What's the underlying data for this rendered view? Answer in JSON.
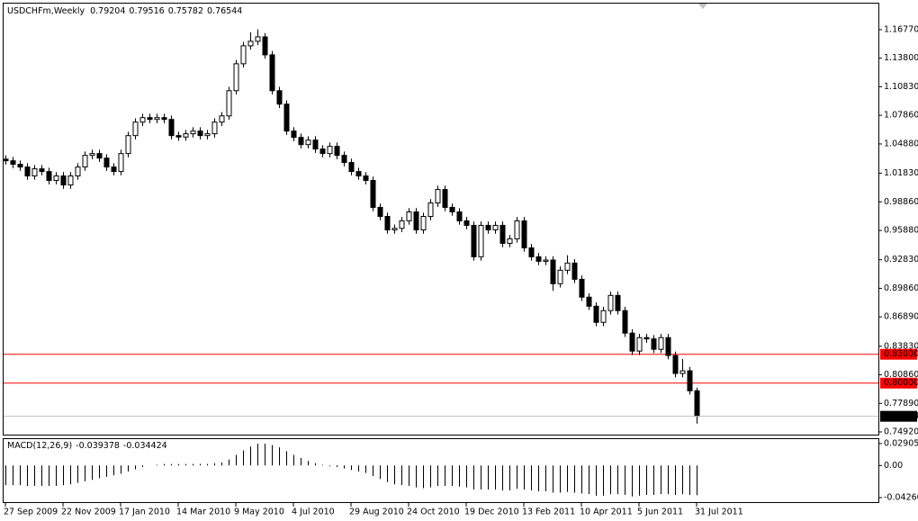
{
  "chart_data": [
    {
      "type": "candlestick",
      "title": "USDCHFm,Weekly",
      "categories": [
        "27 Sep 2009",
        null,
        null,
        null,
        null,
        null,
        null,
        null,
        "22 Nov 2009",
        null,
        null,
        null,
        null,
        null,
        null,
        null,
        "17 Jan 2010",
        null,
        null,
        null,
        null,
        null,
        null,
        null,
        "14 Mar 2010",
        null,
        null,
        null,
        null,
        null,
        null,
        null,
        "9 May 2010",
        null,
        null,
        null,
        null,
        null,
        null,
        null,
        "4 Jul 2010",
        null,
        null,
        null,
        null,
        null,
        null,
        null,
        "29 Aug 2010",
        null,
        null,
        null,
        null,
        null,
        null,
        null,
        "24 Oct 2010",
        null,
        null,
        null,
        null,
        null,
        null,
        null,
        "19 Dec 2010",
        null,
        null,
        null,
        null,
        null,
        null,
        null,
        "13 Feb 2011",
        null,
        null,
        null,
        null,
        null,
        null,
        null,
        "10 Apr 2011",
        null,
        null,
        null,
        null,
        null,
        null,
        null,
        "5 Jun 2011",
        null,
        null,
        null,
        null,
        null,
        null,
        null,
        "31 Jul 2011"
      ],
      "ohlc": [
        [
          1.033,
          1.037,
          1.0273,
          1.0313
        ],
        [
          1.0313,
          1.0353,
          1.0236,
          1.0276
        ],
        [
          1.0276,
          1.0316,
          1.0208,
          1.0248
        ],
        [
          1.0248,
          1.0288,
          1.0115,
          1.0155
        ],
        [
          1.0155,
          1.0269,
          1.0115,
          1.0229
        ],
        [
          1.0229,
          1.0269,
          1.0161,
          1.0201
        ],
        [
          1.0201,
          1.0241,
          1.0068,
          1.0108
        ],
        [
          1.0108,
          1.0195,
          1.0068,
          1.0155
        ],
        [
          1.0155,
          1.0195,
          1.0021,
          1.0061
        ],
        [
          1.0061,
          1.0195,
          1.0021,
          1.0155
        ],
        [
          1.0155,
          1.0288,
          1.0115,
          1.0248
        ],
        [
          1.0248,
          1.0409,
          1.0208,
          1.0369
        ],
        [
          1.0369,
          1.0428,
          1.0329,
          1.0388
        ],
        [
          1.0388,
          1.0428,
          1.0301,
          1.0341
        ],
        [
          1.0341,
          1.0381,
          1.0208,
          1.0248
        ],
        [
          1.0248,
          1.0288,
          1.0161,
          1.0201
        ],
        [
          1.0201,
          1.0428,
          1.0161,
          1.0388
        ],
        [
          1.0388,
          1.0615,
          1.0348,
          1.0575
        ],
        [
          1.0575,
          1.0755,
          1.0535,
          1.0715
        ],
        [
          1.0715,
          1.0802,
          1.0675,
          1.0762
        ],
        [
          1.0762,
          1.0802,
          1.0703,
          1.0743
        ],
        [
          1.0743,
          1.0802,
          1.0703,
          1.0762
        ],
        [
          1.0762,
          1.0802,
          1.0703,
          1.0743
        ],
        [
          1.0743,
          1.0783,
          1.0535,
          1.0575
        ],
        [
          1.0575,
          1.0615,
          1.052,
          1.056
        ],
        [
          1.056,
          1.0634,
          1.052,
          1.0594
        ],
        [
          1.0594,
          1.0662,
          1.0554,
          1.0622
        ],
        [
          1.0622,
          1.0662,
          1.0535,
          1.0575
        ],
        [
          1.0575,
          1.0634,
          1.0535,
          1.0594
        ],
        [
          1.0594,
          1.0755,
          1.0554,
          1.0715
        ],
        [
          1.0715,
          1.082,
          1.0675,
          1.078
        ],
        [
          1.078,
          1.1082,
          1.074,
          1.1042
        ],
        [
          1.1042,
          1.1362,
          1.1002,
          1.1322
        ],
        [
          1.1322,
          1.1549,
          1.1282,
          1.1509
        ],
        [
          1.1509,
          1.165,
          1.1469,
          1.1556
        ],
        [
          1.1556,
          1.168,
          1.1516,
          1.1602
        ],
        [
          1.1602,
          1.1642,
          1.1375,
          1.1415
        ],
        [
          1.1415,
          1.1455,
          1.1002,
          1.1042
        ],
        [
          1.1042,
          1.1082,
          1.0862,
          1.0902
        ],
        [
          1.0902,
          1.0942,
          1.0582,
          1.0622
        ],
        [
          1.0622,
          1.0662,
          1.0516,
          1.0556
        ],
        [
          1.0556,
          1.0596,
          1.0441,
          1.0481
        ],
        [
          1.0481,
          1.0568,
          1.0441,
          1.0528
        ],
        [
          1.0528,
          1.0568,
          1.0395,
          1.0435
        ],
        [
          1.0435,
          1.0475,
          1.0348,
          1.0388
        ],
        [
          1.0388,
          1.0503,
          1.0348,
          1.0463
        ],
        [
          1.0463,
          1.0503,
          1.0329,
          1.0369
        ],
        [
          1.0369,
          1.0409,
          1.0255,
          1.0295
        ],
        [
          1.0295,
          1.0335,
          1.0161,
          1.0201
        ],
        [
          1.0201,
          1.0241,
          1.0115,
          1.0155
        ],
        [
          1.0155,
          1.0195,
          1.0068,
          1.0108
        ],
        [
          1.0108,
          1.0148,
          0.9788,
          0.9828
        ],
        [
          0.9828,
          0.9868,
          0.9694,
          0.9734
        ],
        [
          0.9734,
          0.9774,
          0.9554,
          0.9594
        ],
        [
          0.9594,
          0.965,
          0.9554,
          0.961
        ],
        [
          0.961,
          0.9728,
          0.957,
          0.9688
        ],
        [
          0.9688,
          0.9821,
          0.9648,
          0.9781
        ],
        [
          0.9781,
          0.9821,
          0.9554,
          0.9594
        ],
        [
          0.9594,
          0.9774,
          0.9554,
          0.9734
        ],
        [
          0.9734,
          0.9914,
          0.9694,
          0.9874
        ],
        [
          0.9874,
          1.0054,
          0.9834,
          1.0014
        ],
        [
          1.0014,
          1.0054,
          0.9788,
          0.9828
        ],
        [
          0.9828,
          0.9868,
          0.9741,
          0.9781
        ],
        [
          0.9781,
          0.9821,
          0.9648,
          0.9688
        ],
        [
          0.9688,
          0.9728,
          0.9601,
          0.9641
        ],
        [
          0.9641,
          0.9681,
          0.9274,
          0.9314
        ],
        [
          0.9314,
          0.9681,
          0.9274,
          0.9641
        ],
        [
          0.9641,
          0.9681,
          0.9554,
          0.9594
        ],
        [
          0.9594,
          0.9681,
          0.9554,
          0.9641
        ],
        [
          0.9641,
          0.9681,
          0.9414,
          0.9454
        ],
        [
          0.9454,
          0.9541,
          0.9414,
          0.9501
        ],
        [
          0.9501,
          0.9728,
          0.9461,
          0.9688
        ],
        [
          0.9688,
          0.9728,
          0.9367,
          0.9407
        ],
        [
          0.9407,
          0.9447,
          0.9274,
          0.9314
        ],
        [
          0.9314,
          0.9354,
          0.9227,
          0.9267
        ],
        [
          0.9267,
          0.932,
          0.9227,
          0.928
        ],
        [
          0.928,
          0.932,
          0.896,
          0.9034
        ],
        [
          0.9034,
          0.9214,
          0.8994,
          0.9174
        ],
        [
          0.9174,
          0.933,
          0.9134,
          0.9249
        ],
        [
          0.9249,
          0.9289,
          0.904,
          0.908
        ],
        [
          0.908,
          0.912,
          0.8854,
          0.8894
        ],
        [
          0.8894,
          0.8934,
          0.876,
          0.88
        ],
        [
          0.88,
          0.884,
          0.8592,
          0.8632
        ],
        [
          0.8632,
          0.8794,
          0.8592,
          0.8754
        ],
        [
          0.8754,
          0.8952,
          0.8714,
          0.8912
        ],
        [
          0.8912,
          0.8952,
          0.8714,
          0.8754
        ],
        [
          0.8754,
          0.8794,
          0.848,
          0.852
        ],
        [
          0.852,
          0.856,
          0.8293,
          0.8333
        ],
        [
          0.8333,
          0.8513,
          0.8293,
          0.8473
        ],
        [
          0.8473,
          0.8513,
          0.842,
          0.846
        ],
        [
          0.846,
          0.85,
          0.8312,
          0.8352
        ],
        [
          0.8352,
          0.8513,
          0.8312,
          0.8473
        ],
        [
          0.8473,
          0.8513,
          0.8247,
          0.8287
        ],
        [
          0.8287,
          0.8327,
          0.806,
          0.81
        ],
        [
          0.81,
          0.825,
          0.806,
          0.8128
        ],
        [
          0.8128,
          0.8168,
          0.788,
          0.792
        ],
        [
          0.79204,
          0.79516,
          0.75782,
          0.76544
        ]
      ],
      "ylim": [
        0.7464,
        1.1948
      ],
      "yticks": [
        {
          "value": 1.1677,
          "label": "1.16770"
        },
        {
          "value": 1.138,
          "label": "1.13800"
        },
        {
          "value": 1.1083,
          "label": "1.10830"
        },
        {
          "value": 1.0786,
          "label": "1.07860"
        },
        {
          "value": 1.0488,
          "label": "1.04880"
        },
        {
          "value": 1.0183,
          "label": "1.01830"
        },
        {
          "value": 0.9886,
          "label": "0.98860"
        },
        {
          "value": 0.9588,
          "label": "0.95880"
        },
        {
          "value": 0.9283,
          "label": "0.92830"
        },
        {
          "value": 0.8986,
          "label": "0.89860"
        },
        {
          "value": 0.8689,
          "label": "0.86890"
        },
        {
          "value": 0.8383,
          "label": "0.83830"
        },
        {
          "value": 0.8086,
          "label": "0.80860"
        },
        {
          "value": 0.7789,
          "label": "0.77890"
        },
        {
          "value": 0.7492,
          "label": "0.74920"
        }
      ],
      "hlines": [
        {
          "value": 0.83,
          "label": "0.83000",
          "color": "#ff0000"
        },
        {
          "value": 0.8,
          "label": "0.80000",
          "color": "#ff0000"
        }
      ],
      "up_color": "#ffffff",
      "down_color": "#000000"
    },
    {
      "type": "histogram",
      "title": "MACD(12,26,9)",
      "signal_value": -0.034424,
      "color": "#000000",
      "values": [
        -0.026,
        -0.026,
        -0.026,
        -0.027,
        -0.027,
        -0.027,
        -0.027,
        -0.027,
        -0.026,
        -0.025,
        -0.023,
        -0.021,
        -0.019,
        -0.017,
        -0.015,
        -0.013,
        -0.011,
        -0.008,
        -0.005,
        -0.002,
        0.0,
        0.001,
        0.002,
        0.002,
        0.002,
        0.002,
        0.002,
        0.002,
        0.002,
        0.003,
        0.004,
        0.008,
        0.014,
        0.02,
        0.025,
        0.029,
        0.029,
        0.027,
        0.024,
        0.019,
        0.014,
        0.01,
        0.006,
        0.003,
        0.001,
        -0.001,
        -0.002,
        -0.004,
        -0.006,
        -0.008,
        -0.01,
        -0.014,
        -0.018,
        -0.022,
        -0.025,
        -0.026,
        -0.027,
        -0.029,
        -0.03,
        -0.029,
        -0.027,
        -0.027,
        -0.027,
        -0.028,
        -0.029,
        -0.032,
        -0.032,
        -0.032,
        -0.032,
        -0.033,
        -0.033,
        -0.031,
        -0.032,
        -0.033,
        -0.034,
        -0.034,
        -0.036,
        -0.036,
        -0.035,
        -0.036,
        -0.037,
        -0.038,
        -0.04,
        -0.04,
        -0.038,
        -0.038,
        -0.039,
        -0.041,
        -0.04,
        -0.039,
        -0.039,
        -0.038,
        -0.038,
        -0.039,
        -0.038,
        -0.039,
        -0.039378
      ],
      "ylim": [
        -0.0485,
        0.0349
      ],
      "yticks": [
        0.029054,
        {
          "value": 0,
          "label": "0.00"
        },
        -0.042604
      ]
    }
  ]
}
